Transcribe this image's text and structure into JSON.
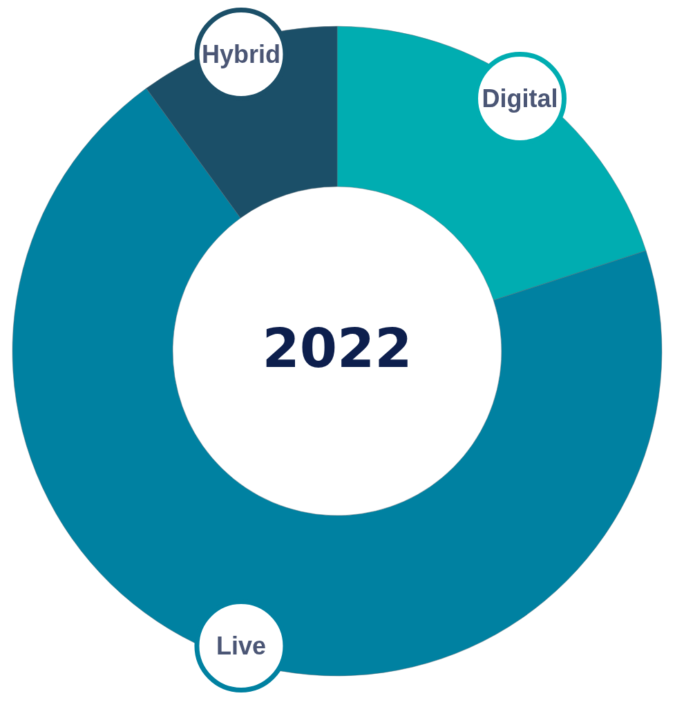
{
  "chart_data": {
    "type": "donut",
    "title": "2022",
    "categories": [
      "Digital",
      "Live",
      "Hybrid"
    ],
    "values": [
      20,
      70,
      10
    ],
    "colors": [
      "#00adb1",
      "#0081a1",
      "#1b4f68"
    ],
    "legend": false
  }
}
